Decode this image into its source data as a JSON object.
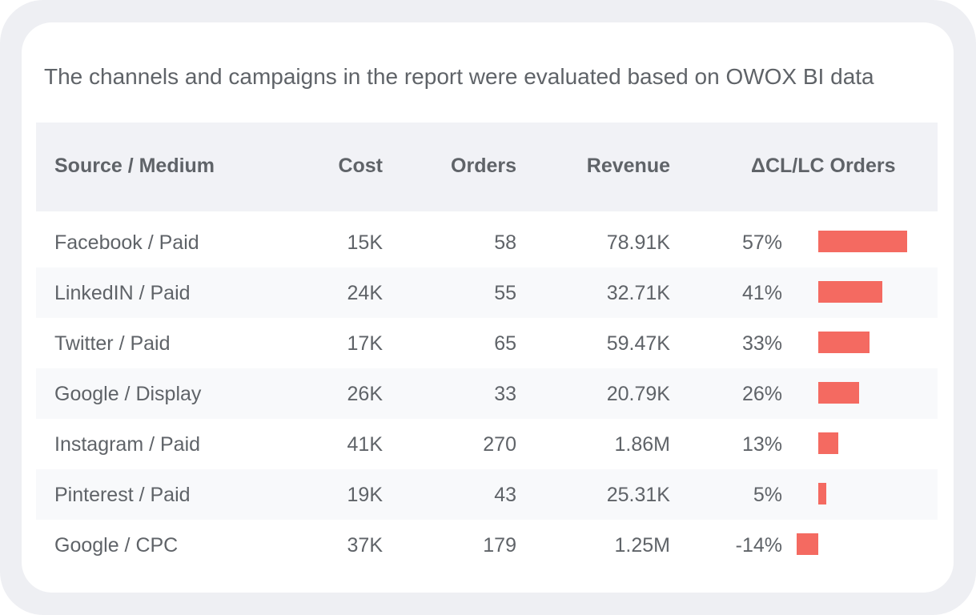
{
  "report_note": "The channels and campaigns in the report were evaluated based on OWOX BI data",
  "colors": {
    "bar": "#f46a61",
    "header_bg": "#f1f2f6",
    "alt_row": "#f8f9fb",
    "frame": "#eeeff3"
  },
  "table": {
    "headers": {
      "source_medium": "Source / Medium",
      "cost": "Cost",
      "orders": "Orders",
      "revenue": "Revenue",
      "delta": "ΔCL/LC Orders"
    },
    "rows": [
      {
        "source": "Facebook / Paid",
        "cost": "15K",
        "orders": "58",
        "revenue": "78.91K",
        "delta": "57%"
      },
      {
        "source": "LinkedIN / Paid",
        "cost": "24K",
        "orders": "55",
        "revenue": "32.71K",
        "delta": "41%"
      },
      {
        "source": "Twitter / Paid",
        "cost": "17K",
        "orders": "65",
        "revenue": "59.47K",
        "delta": "33%"
      },
      {
        "source": "Google / Display",
        "cost": "26K",
        "orders": "33",
        "revenue": "20.79K",
        "delta": "26%"
      },
      {
        "source": "Instagram / Paid",
        "cost": "41K",
        "orders": "270",
        "revenue": "1.86M",
        "delta": "13%"
      },
      {
        "source": "Pinterest / Paid",
        "cost": "19K",
        "orders": "43",
        "revenue": "25.31K",
        "delta": "5%"
      },
      {
        "source": "Google / CPC",
        "cost": "37K",
        "orders": "179",
        "revenue": "1.25M",
        "delta": "-14%"
      }
    ]
  },
  "chart_data": {
    "type": "bar",
    "categories": [
      "Facebook / Paid",
      "LinkedIN / Paid",
      "Twitter / Paid",
      "Google / Display",
      "Instagram / Paid",
      "Pinterest / Paid",
      "Google / CPC"
    ],
    "values": [
      57,
      41,
      33,
      26,
      13,
      5,
      -14
    ],
    "title": "ΔCL/LC Orders",
    "unit": "%"
  }
}
